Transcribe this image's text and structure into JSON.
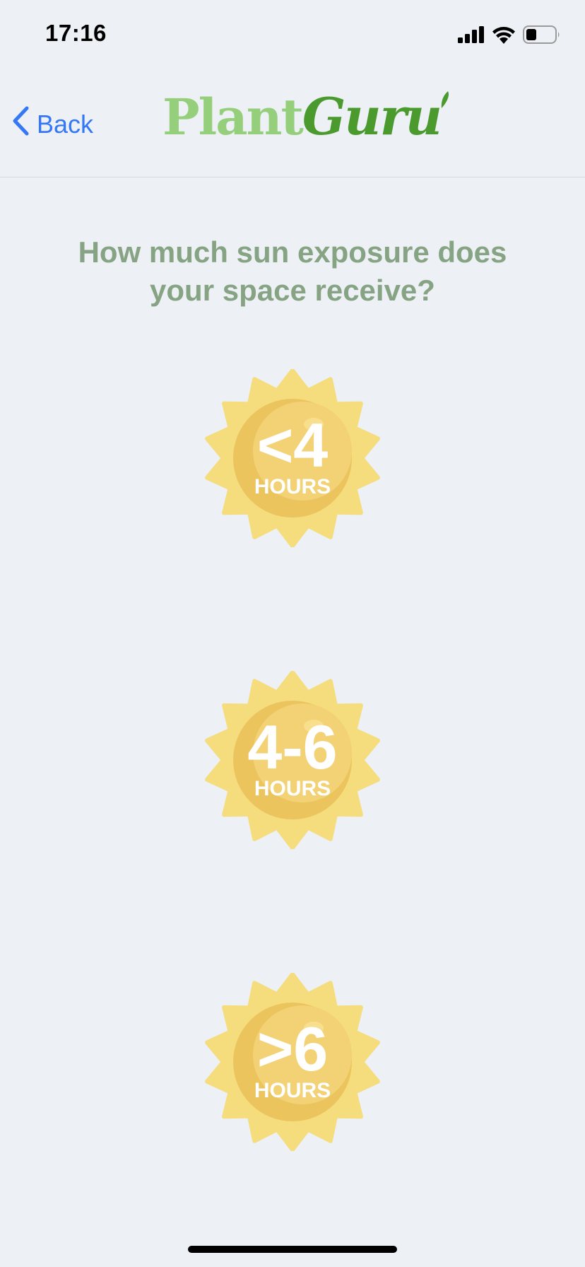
{
  "status_bar": {
    "time": "17:16"
  },
  "nav": {
    "back_label": "Back",
    "logo_part1": "Plant",
    "logo_part2": "Guru"
  },
  "question": {
    "line1": "How much sun exposure does",
    "line2": "your space receive?"
  },
  "options": [
    {
      "value": "<4",
      "unit": "HOURS"
    },
    {
      "value": "4-6",
      "unit": "HOURS"
    },
    {
      "value": ">6",
      "unit": "HOURS"
    }
  ],
  "colors": {
    "accent": "#3478f6",
    "logo_light": "#95cf7c",
    "logo_dark": "#4a9a2e",
    "question": "#86a484",
    "sun_rays": "#f5dc7c",
    "sun_core": "#ecc45e",
    "sun_highlight": "#f2d274",
    "background": "#edf0f4"
  },
  "icons": {
    "signal": "cellular-signal-icon",
    "wifi": "wifi-icon",
    "battery": "battery-icon",
    "back": "chevron-left-icon"
  }
}
